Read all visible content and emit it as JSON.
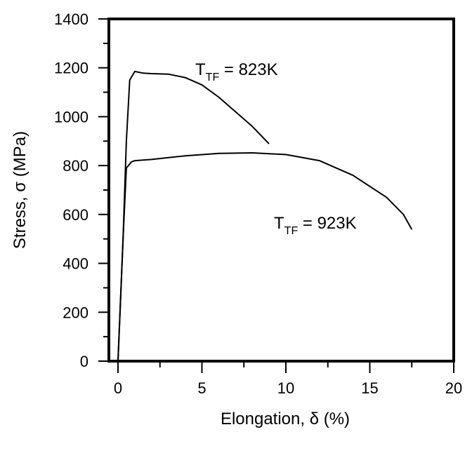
{
  "chart_data": {
    "type": "line",
    "title": "",
    "xlabel": "Elongation, δ (%)",
    "ylabel": "Stress, σ (MPa)",
    "xlim": [
      -0.5,
      20
    ],
    "ylim": [
      0,
      1400
    ],
    "xticks": [
      "0",
      "5",
      "10",
      "15",
      "20"
    ],
    "yticks": [
      "0",
      "200",
      "400",
      "600",
      "800",
      "1000",
      "1200",
      "1400"
    ],
    "grid": false,
    "legend": "none (inline annotations)",
    "series": [
      {
        "name": "T_TF = 823K",
        "x": [
          0,
          0.3,
          0.5,
          0.7,
          1.0,
          1.5,
          2.0,
          3.0,
          4.0,
          5.0,
          6.0,
          7.0,
          8.0,
          9.0
        ],
        "y": [
          0,
          500,
          900,
          1150,
          1185,
          1178,
          1176,
          1174,
          1160,
          1130,
          1080,
          1020,
          960,
          889
        ]
      },
      {
        "name": "T_TF = 923K",
        "x": [
          0,
          0.3,
          0.5,
          0.8,
          1.0,
          2.0,
          4.0,
          6.0,
          8.0,
          10.0,
          12.0,
          14.0,
          16.0,
          17.0,
          17.5
        ],
        "y": [
          0,
          500,
          790,
          815,
          820,
          825,
          840,
          850,
          852,
          845,
          820,
          760,
          670,
          600,
          539
        ]
      }
    ],
    "annotations": [
      {
        "text": "T",
        "sub": "TF",
        "rest": " = 823K",
        "x": 4.7,
        "y": 1200
      },
      {
        "text": "T",
        "sub": "TF",
        "rest": " = 923K",
        "x": 9.4,
        "y": 560
      }
    ]
  },
  "labels": {
    "xlabel": "Elongation, δ (%)",
    "ylabel": "Stress, σ (MPa)",
    "ann1_main": "T",
    "ann1_sub": "TF",
    "ann1_rest": " = 823K",
    "ann2_main": "T",
    "ann2_sub": "TF",
    "ann2_rest": " = 923K"
  }
}
